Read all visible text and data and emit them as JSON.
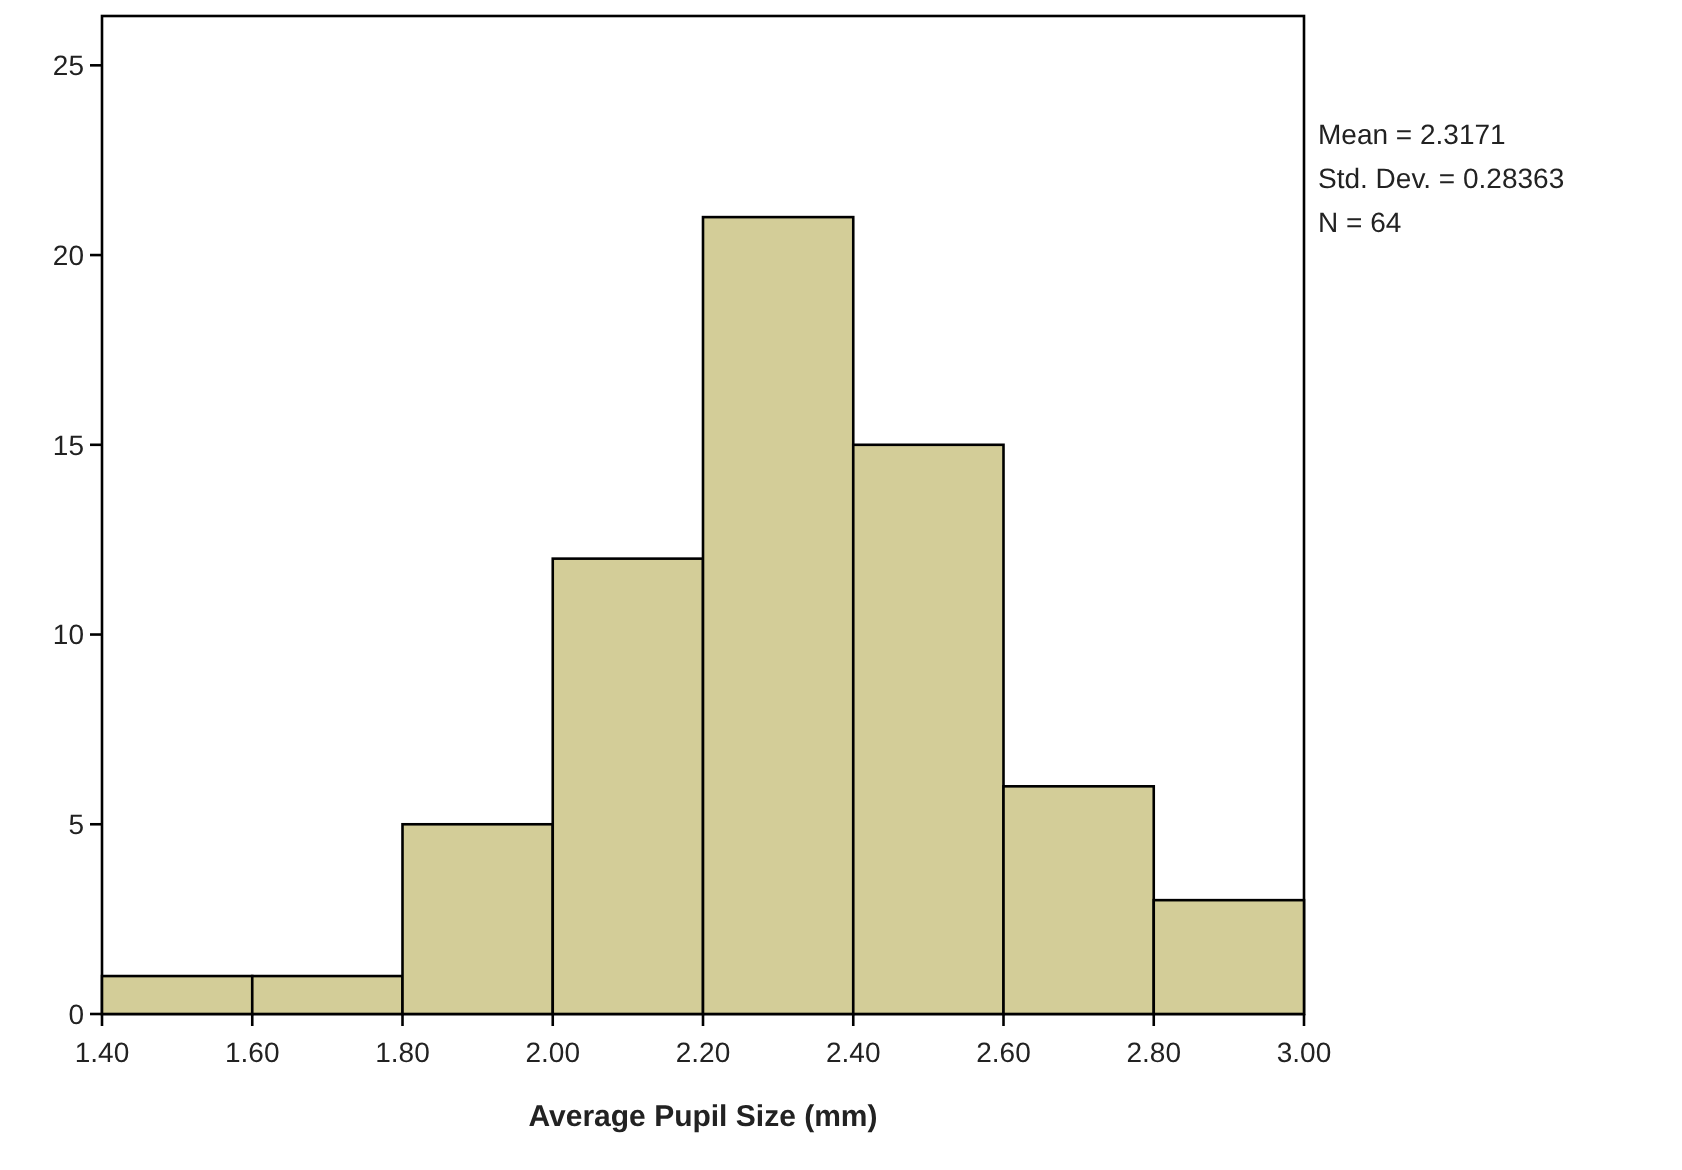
{
  "chart_data": {
    "type": "histogram",
    "xlabel": "Average Pupil Size (mm)",
    "bins": [
      1.4,
      1.6,
      1.8,
      2.0,
      2.2,
      2.4,
      2.6,
      2.8,
      3.0
    ],
    "values": [
      1,
      1,
      5,
      12,
      21,
      15,
      6,
      3
    ],
    "color": "#d3cd98",
    "xlim": [
      1.4,
      3.0
    ],
    "xticks": [
      {
        "value": 1.4,
        "label": "1.40"
      },
      {
        "value": 1.6,
        "label": "1.60"
      },
      {
        "value": 1.8,
        "label": "1.80"
      },
      {
        "value": 2.0,
        "label": "2.00"
      },
      {
        "value": 2.2,
        "label": "2.20"
      },
      {
        "value": 2.4,
        "label": "2.40"
      },
      {
        "value": 2.6,
        "label": "2.60"
      },
      {
        "value": 2.8,
        "label": "2.80"
      },
      {
        "value": 3.0,
        "label": "3.00"
      }
    ],
    "ylim": [
      0,
      26.3
    ],
    "yticks": [
      0,
      5,
      10,
      15,
      20,
      25
    ],
    "annotations": [
      "Mean = 2.3171",
      "Std. Dev. = 0.28363",
      "N = 64"
    ]
  }
}
